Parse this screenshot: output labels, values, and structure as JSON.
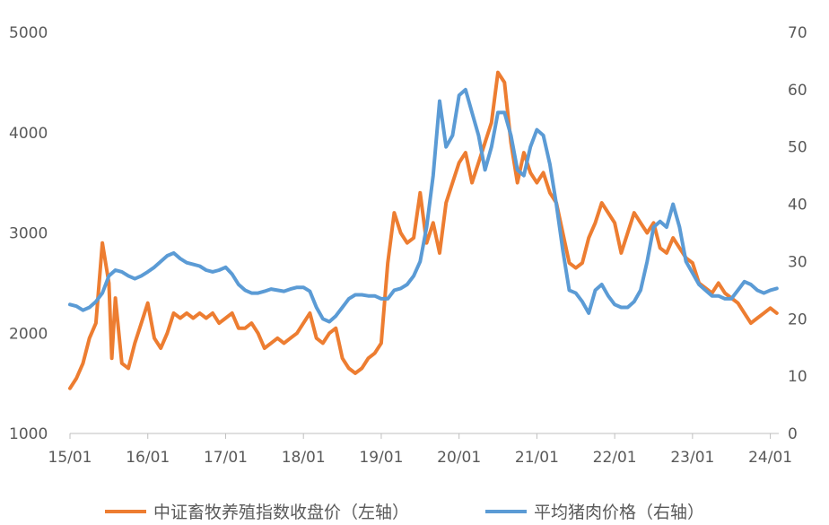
{
  "chart_data": {
    "type": "line",
    "title": "",
    "x_ticks": [
      "15/01",
      "16/01",
      "17/01",
      "18/01",
      "19/01",
      "20/01",
      "21/01",
      "22/01",
      "23/01",
      "24/01"
    ],
    "y_left": {
      "min": 1000,
      "max": 5000,
      "ticks": [
        1000,
        2000,
        3000,
        4000,
        5000
      ]
    },
    "y_right": {
      "min": 0,
      "max": 70,
      "ticks": [
        0,
        10,
        20,
        30,
        40,
        50,
        60,
        70
      ]
    },
    "grid": false,
    "legend_position": "bottom",
    "series": [
      {
        "name": "中证畜牧养殖指数收盘价（左轴）",
        "axis": "left",
        "color": "#ED7D31",
        "points": [
          [
            "2015-01",
            1450
          ],
          [
            "2015-02",
            1550
          ],
          [
            "2015-03",
            1700
          ],
          [
            "2015-04",
            1950
          ],
          [
            "2015-05",
            2100
          ],
          [
            "2015-06",
            2900
          ],
          [
            "2015-07",
            2500
          ],
          [
            "2015-07",
            1750
          ],
          [
            "2015-08",
            2350
          ],
          [
            "2015-09",
            1700
          ],
          [
            "2015-10",
            1650
          ],
          [
            "2015-11",
            1900
          ],
          [
            "2015-12",
            2100
          ],
          [
            "2016-01",
            2300
          ],
          [
            "2016-02",
            1950
          ],
          [
            "2016-03",
            1850
          ],
          [
            "2016-04",
            2000
          ],
          [
            "2016-05",
            2200
          ],
          [
            "2016-06",
            2150
          ],
          [
            "2016-07",
            2200
          ],
          [
            "2016-08",
            2150
          ],
          [
            "2016-09",
            2200
          ],
          [
            "2016-10",
            2150
          ],
          [
            "2016-11",
            2200
          ],
          [
            "2016-12",
            2100
          ],
          [
            "2017-01",
            2150
          ],
          [
            "2017-02",
            2200
          ],
          [
            "2017-03",
            2050
          ],
          [
            "2017-04",
            2050
          ],
          [
            "2017-05",
            2100
          ],
          [
            "2017-06",
            2000
          ],
          [
            "2017-07",
            1850
          ],
          [
            "2017-08",
            1900
          ],
          [
            "2017-09",
            1950
          ],
          [
            "2017-10",
            1900
          ],
          [
            "2017-11",
            1950
          ],
          [
            "2017-12",
            2000
          ],
          [
            "2018-01",
            2100
          ],
          [
            "2018-02",
            2200
          ],
          [
            "2018-03",
            1950
          ],
          [
            "2018-04",
            1900
          ],
          [
            "2018-05",
            2000
          ],
          [
            "2018-06",
            2050
          ],
          [
            "2018-07",
            1750
          ],
          [
            "2018-08",
            1650
          ],
          [
            "2018-09",
            1600
          ],
          [
            "2018-10",
            1650
          ],
          [
            "2018-11",
            1750
          ],
          [
            "2018-12",
            1800
          ],
          [
            "2019-01",
            1900
          ],
          [
            "2019-02",
            2700
          ],
          [
            "2019-03",
            3200
          ],
          [
            "2019-04",
            3000
          ],
          [
            "2019-05",
            2900
          ],
          [
            "2019-06",
            2950
          ],
          [
            "2019-07",
            3400
          ],
          [
            "2019-08",
            2900
          ],
          [
            "2019-09",
            3100
          ],
          [
            "2019-10",
            2800
          ],
          [
            "2019-11",
            3300
          ],
          [
            "2019-12",
            3500
          ],
          [
            "2020-01",
            3700
          ],
          [
            "2020-02",
            3800
          ],
          [
            "2020-03",
            3500
          ],
          [
            "2020-04",
            3700
          ],
          [
            "2020-05",
            3900
          ],
          [
            "2020-06",
            4100
          ],
          [
            "2020-07",
            4600
          ],
          [
            "2020-08",
            4500
          ],
          [
            "2020-09",
            3900
          ],
          [
            "2020-10",
            3500
          ],
          [
            "2020-11",
            3800
          ],
          [
            "2020-12",
            3600
          ],
          [
            "2021-01",
            3500
          ],
          [
            "2021-02",
            3600
          ],
          [
            "2021-03",
            3400
          ],
          [
            "2021-04",
            3300
          ],
          [
            "2021-05",
            3000
          ],
          [
            "2021-06",
            2700
          ],
          [
            "2021-07",
            2650
          ],
          [
            "2021-08",
            2700
          ],
          [
            "2021-09",
            2950
          ],
          [
            "2021-10",
            3100
          ],
          [
            "2021-11",
            3300
          ],
          [
            "2021-12",
            3200
          ],
          [
            "2022-01",
            3100
          ],
          [
            "2022-02",
            2800
          ],
          [
            "2022-03",
            3000
          ],
          [
            "2022-04",
            3200
          ],
          [
            "2022-05",
            3100
          ],
          [
            "2022-06",
            3000
          ],
          [
            "2022-07",
            3100
          ],
          [
            "2022-08",
            2850
          ],
          [
            "2022-09",
            2800
          ],
          [
            "2022-10",
            2950
          ],
          [
            "2022-11",
            2850
          ],
          [
            "2022-12",
            2750
          ],
          [
            "2023-01",
            2700
          ],
          [
            "2023-02",
            2500
          ],
          [
            "2023-03",
            2450
          ],
          [
            "2023-04",
            2400
          ],
          [
            "2023-05",
            2500
          ],
          [
            "2023-06",
            2400
          ],
          [
            "2023-07",
            2350
          ],
          [
            "2023-08",
            2300
          ],
          [
            "2023-09",
            2200
          ],
          [
            "2023-10",
            2100
          ],
          [
            "2023-11",
            2150
          ],
          [
            "2023-12",
            2200
          ],
          [
            "2024-01",
            2250
          ],
          [
            "2024-02",
            2200
          ]
        ]
      },
      {
        "name": "平均猪肉价格（右轴）",
        "axis": "right",
        "color": "#5B9BD5",
        "points": [
          [
            "2015-01",
            22.5
          ],
          [
            "2015-02",
            22.2
          ],
          [
            "2015-03",
            21.5
          ],
          [
            "2015-04",
            22
          ],
          [
            "2015-05",
            23
          ],
          [
            "2015-06",
            24.5
          ],
          [
            "2015-07",
            27.5
          ],
          [
            "2015-08",
            28.5
          ],
          [
            "2015-09",
            28.2
          ],
          [
            "2015-10",
            27.5
          ],
          [
            "2015-11",
            27
          ],
          [
            "2015-12",
            27.5
          ],
          [
            "2016-01",
            28.2
          ],
          [
            "2016-02",
            29
          ],
          [
            "2016-03",
            30
          ],
          [
            "2016-04",
            31
          ],
          [
            "2016-05",
            31.5
          ],
          [
            "2016-06",
            30.5
          ],
          [
            "2016-07",
            29.8
          ],
          [
            "2016-08",
            29.5
          ],
          [
            "2016-09",
            29.2
          ],
          [
            "2016-10",
            28.5
          ],
          [
            "2016-11",
            28.2
          ],
          [
            "2016-12",
            28.5
          ],
          [
            "2017-01",
            29
          ],
          [
            "2017-02",
            27.8
          ],
          [
            "2017-03",
            26
          ],
          [
            "2017-04",
            25
          ],
          [
            "2017-05",
            24.5
          ],
          [
            "2017-06",
            24.5
          ],
          [
            "2017-07",
            24.8
          ],
          [
            "2017-08",
            25.2
          ],
          [
            "2017-09",
            25
          ],
          [
            "2017-10",
            24.8
          ],
          [
            "2017-11",
            25.2
          ],
          [
            "2017-12",
            25.5
          ],
          [
            "2018-01",
            25.5
          ],
          [
            "2018-02",
            24.8
          ],
          [
            "2018-03",
            22
          ],
          [
            "2018-04",
            20
          ],
          [
            "2018-05",
            19.5
          ],
          [
            "2018-06",
            20.5
          ],
          [
            "2018-07",
            22
          ],
          [
            "2018-08",
            23.5
          ],
          [
            "2018-09",
            24.2
          ],
          [
            "2018-10",
            24.2
          ],
          [
            "2018-11",
            24
          ],
          [
            "2018-12",
            24
          ],
          [
            "2019-01",
            23.5
          ],
          [
            "2019-02",
            23.5
          ],
          [
            "2019-03",
            25
          ],
          [
            "2019-04",
            25.3
          ],
          [
            "2019-05",
            26
          ],
          [
            "2019-06",
            27.5
          ],
          [
            "2019-07",
            30
          ],
          [
            "2019-08",
            36
          ],
          [
            "2019-09",
            45
          ],
          [
            "2019-10",
            58
          ],
          [
            "2019-11",
            50
          ],
          [
            "2019-12",
            52
          ],
          [
            "2020-01",
            59
          ],
          [
            "2020-02",
            60
          ],
          [
            "2020-03",
            56
          ],
          [
            "2020-04",
            52
          ],
          [
            "2020-05",
            46
          ],
          [
            "2020-06",
            50
          ],
          [
            "2020-07",
            56
          ],
          [
            "2020-08",
            56
          ],
          [
            "2020-09",
            52
          ],
          [
            "2020-10",
            46
          ],
          [
            "2020-11",
            45
          ],
          [
            "2020-12",
            50
          ],
          [
            "2021-01",
            53
          ],
          [
            "2021-02",
            52
          ],
          [
            "2021-03",
            47
          ],
          [
            "2021-04",
            40
          ],
          [
            "2021-05",
            32
          ],
          [
            "2021-06",
            25
          ],
          [
            "2021-07",
            24.5
          ],
          [
            "2021-08",
            23
          ],
          [
            "2021-09",
            21
          ],
          [
            "2021-10",
            25
          ],
          [
            "2021-11",
            26
          ],
          [
            "2021-12",
            24
          ],
          [
            "2022-01",
            22.5
          ],
          [
            "2022-02",
            22
          ],
          [
            "2022-03",
            22
          ],
          [
            "2022-04",
            23
          ],
          [
            "2022-05",
            25
          ],
          [
            "2022-06",
            30
          ],
          [
            "2022-07",
            36
          ],
          [
            "2022-08",
            37
          ],
          [
            "2022-09",
            36
          ],
          [
            "2022-10",
            40
          ],
          [
            "2022-11",
            36
          ],
          [
            "2022-12",
            30
          ],
          [
            "2023-01",
            28
          ],
          [
            "2023-02",
            26
          ],
          [
            "2023-03",
            25
          ],
          [
            "2023-04",
            24
          ],
          [
            "2023-05",
            24
          ],
          [
            "2023-06",
            23.5
          ],
          [
            "2023-07",
            23.5
          ],
          [
            "2023-08",
            25
          ],
          [
            "2023-09",
            26.5
          ],
          [
            "2023-10",
            26
          ],
          [
            "2023-11",
            25
          ],
          [
            "2023-12",
            24.5
          ],
          [
            "2024-01",
            25
          ],
          [
            "2024-02",
            25.3
          ]
        ]
      }
    ]
  }
}
